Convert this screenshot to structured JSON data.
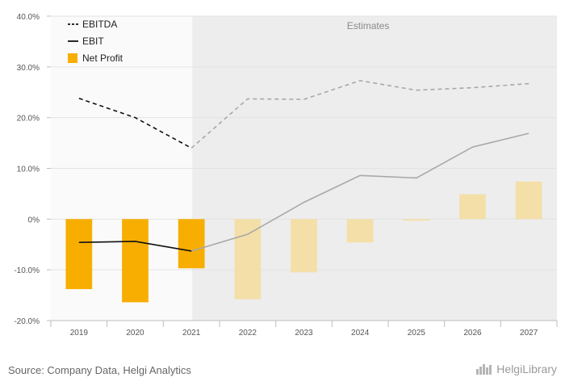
{
  "chart_data": {
    "type": "bar+line",
    "categories": [
      "2019",
      "2020",
      "2021",
      "2022",
      "2023",
      "2024",
      "2025",
      "2026",
      "2027"
    ],
    "estimates_from": "2022",
    "estimates_label": "Estimates",
    "ylim": [
      -20,
      40
    ],
    "yticks": [
      -20,
      -10,
      0,
      10,
      20,
      30,
      40
    ],
    "ytick_labels": [
      "-20.0%",
      "-10.0%",
      "0%",
      "10.0%",
      "20.0%",
      "30.0%",
      "40.0%"
    ],
    "grid": true,
    "legend_position": "top-left",
    "series": [
      {
        "name": "EBITDA",
        "kind": "line",
        "style": "dashed",
        "color": "#111111",
        "estimate_color": "#a8a8a8",
        "values": [
          23.8,
          20.0,
          14.0,
          23.7,
          23.6,
          27.3,
          25.4,
          25.9,
          26.7
        ]
      },
      {
        "name": "EBIT",
        "kind": "line",
        "style": "solid",
        "color": "#111111",
        "estimate_color": "#a8a8a8",
        "values": [
          -4.6,
          -4.4,
          -6.3,
          -3.0,
          3.3,
          8.6,
          8.1,
          14.2,
          16.9
        ]
      },
      {
        "name": "Net Profit",
        "kind": "bar",
        "color": "#f7ae00",
        "estimate_color": "#f4dfa8",
        "values": [
          -13.8,
          -16.4,
          -9.7,
          -15.8,
          -10.5,
          -4.6,
          -0.3,
          4.9,
          7.4
        ]
      }
    ]
  },
  "footer": {
    "source": "Source: Company Data, Helgi Analytics",
    "brand": "HelgiLibrary"
  },
  "colors": {
    "estimate_shade": "#ededed",
    "plot_bg": "#fafafa",
    "grid": "#e3e3e3",
    "axis": "#bdbdbd"
  }
}
